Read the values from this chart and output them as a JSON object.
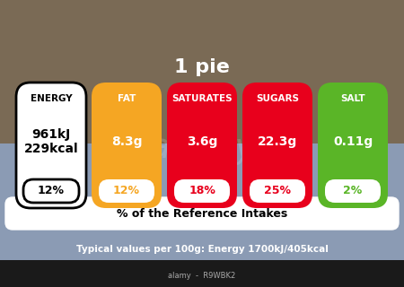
{
  "title": "1 pie",
  "footer_label": "% of the Reference Intakes",
  "typical_values": "Typical values per 100g: Energy 1700kJ/405kcal",
  "background_color": "#8B9BB4",
  "label_bg": "#FFFFFF",
  "footer_bg": "#FFFFFF",
  "nutrients": [
    {
      "name": "ENERGY",
      "value": "961kJ\n229kcal",
      "percent": "12%",
      "color": "#FFFFFF",
      "text_color": "#000000",
      "percent_text_color": "#000000",
      "value_text_color": "#000000",
      "name_text_color": "#000000",
      "outline": "#000000"
    },
    {
      "name": "FAT",
      "value": "8.3g",
      "percent": "12%",
      "color": "#F5A623",
      "text_color": "#FFFFFF",
      "percent_text_color": "#F5A623",
      "value_text_color": "#FFFFFF",
      "name_text_color": "#FFFFFF",
      "outline": null
    },
    {
      "name": "SATURATES",
      "value": "3.6g",
      "percent": "18%",
      "color": "#E8001C",
      "text_color": "#FFFFFF",
      "percent_text_color": "#E8001C",
      "value_text_color": "#FFFFFF",
      "name_text_color": "#FFFFFF",
      "outline": null
    },
    {
      "name": "SUGARS",
      "value": "22.3g",
      "percent": "25%",
      "color": "#E8001C",
      "text_color": "#FFFFFF",
      "percent_text_color": "#E8001C",
      "value_text_color": "#FFFFFF",
      "name_text_color": "#FFFFFF",
      "outline": null
    },
    {
      "name": "SALT",
      "value": "0.11g",
      "percent": "2%",
      "color": "#5AB527",
      "text_color": "#FFFFFF",
      "percent_text_color": "#5AB527",
      "value_text_color": "#FFFFFF",
      "name_text_color": "#FFFFFF",
      "outline": null
    }
  ]
}
